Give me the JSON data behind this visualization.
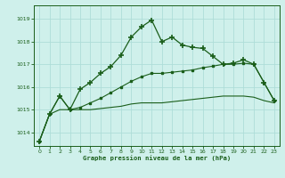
{
  "title": "Graphe pression niveau de la mer (hPa)",
  "bg_color": "#cff0eb",
  "grid_color": "#aeddd8",
  "line_color": "#1a5e1a",
  "xlim": [
    -0.5,
    23.5
  ],
  "ylim": [
    1013.4,
    1019.6
  ],
  "yticks": [
    1014,
    1015,
    1016,
    1017,
    1018,
    1019
  ],
  "xticks": [
    0,
    1,
    2,
    3,
    4,
    5,
    6,
    7,
    8,
    9,
    10,
    11,
    12,
    13,
    14,
    15,
    16,
    17,
    18,
    19,
    20,
    21,
    22,
    23
  ],
  "series1_y": [
    1013.6,
    1014.8,
    1015.6,
    1015.0,
    1015.9,
    1016.2,
    1016.6,
    1016.9,
    1017.4,
    1018.2,
    1018.65,
    1018.95,
    1018.0,
    1018.2,
    1017.85,
    1017.75,
    1017.7,
    1017.35,
    1017.0,
    1017.05,
    1017.2,
    1017.0,
    1016.2,
    1015.4
  ],
  "series2_y": [
    1013.6,
    1014.8,
    1015.6,
    1015.0,
    1015.1,
    1015.3,
    1015.5,
    1015.75,
    1016.0,
    1016.25,
    1016.45,
    1016.6,
    1016.6,
    1016.65,
    1016.7,
    1016.75,
    1016.85,
    1016.92,
    1017.0,
    1017.0,
    1017.05,
    1017.0,
    1016.2,
    1015.4
  ],
  "series3_y": [
    1013.6,
    1014.8,
    1015.0,
    1015.0,
    1015.0,
    1015.0,
    1015.05,
    1015.1,
    1015.15,
    1015.25,
    1015.3,
    1015.3,
    1015.3,
    1015.35,
    1015.4,
    1015.45,
    1015.5,
    1015.55,
    1015.6,
    1015.6,
    1015.6,
    1015.55,
    1015.4,
    1015.3
  ]
}
